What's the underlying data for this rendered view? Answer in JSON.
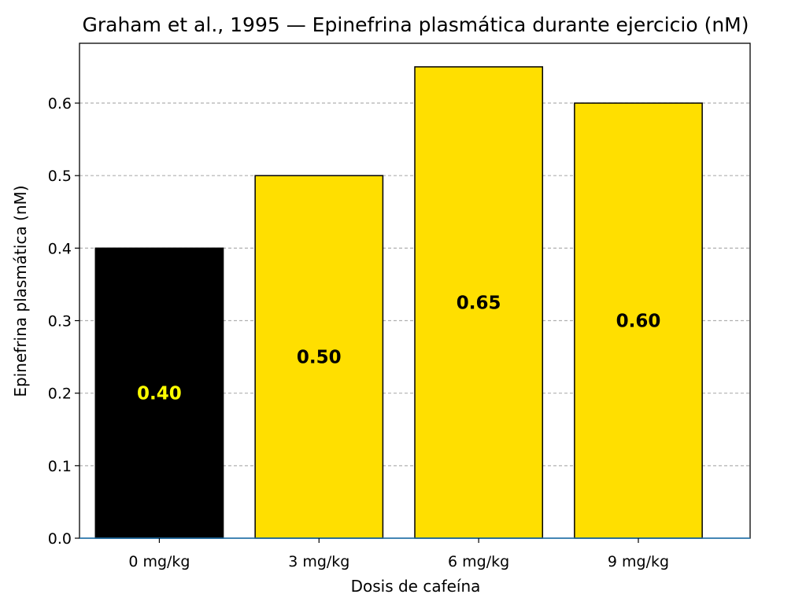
{
  "chart_data": {
    "type": "bar",
    "title": "Graham et al., 1995 — Epinefrina plasmática durante ejercicio (nM)",
    "xlabel": "Dosis de cafeína",
    "ylabel": "Epinefrina plasmática (nM)",
    "categories": [
      "0 mg/kg",
      "3 mg/kg",
      "6 mg/kg",
      "9 mg/kg"
    ],
    "values": [
      0.4,
      0.5,
      0.65,
      0.6
    ],
    "data_labels": [
      "0.40",
      "0.50",
      "0.65",
      "0.60"
    ],
    "bar_colors": [
      "#000000",
      "#ffdf00",
      "#ffdf00",
      "#ffdf00"
    ],
    "label_colors": [
      "#ffff00",
      "#000000",
      "#000000",
      "#000000"
    ],
    "ylim": [
      0,
      0.6825
    ],
    "yticks": [
      0.0,
      0.1,
      0.2,
      0.3,
      0.4,
      0.5,
      0.6
    ],
    "ytick_labels": [
      "0.0",
      "0.1",
      "0.2",
      "0.3",
      "0.4",
      "0.5",
      "0.6"
    ],
    "grid": "y-dashed",
    "legend": "none"
  }
}
